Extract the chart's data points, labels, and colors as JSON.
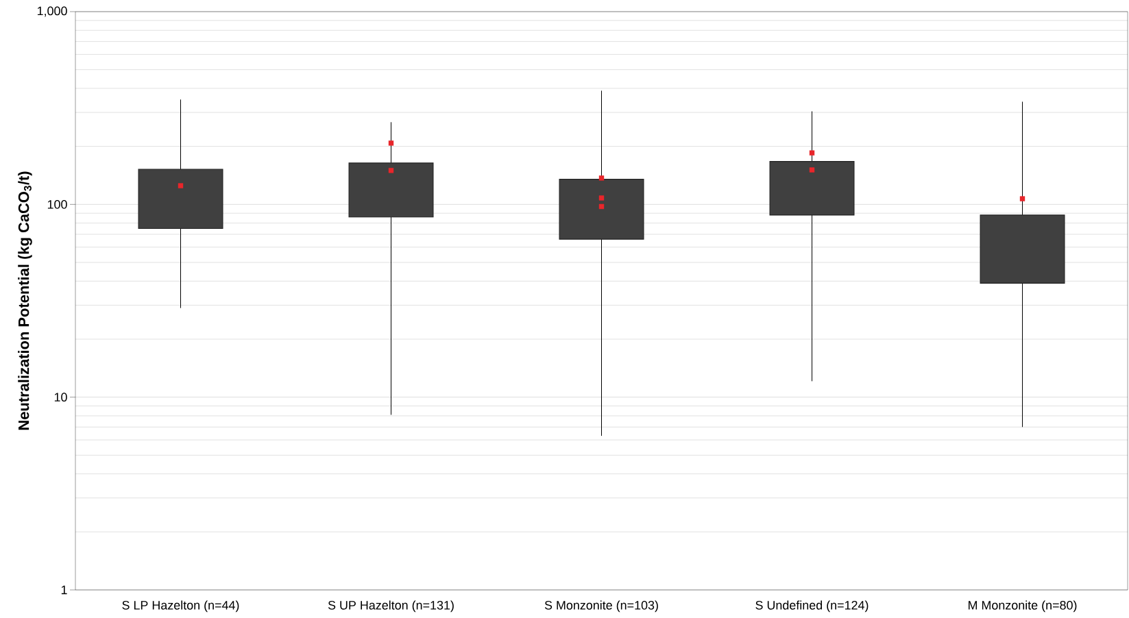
{
  "chart_data": {
    "type": "box",
    "ylabel": "Neutralization Potential (kg CaCO$_{3}$/t)",
    "categories": [
      "S LP Hazelton (n=44)",
      "S UP Hazelton (n=131)",
      "S Monzonite (n=103)",
      "S Undefined (n=124)",
      "M Monzonite (n=80)"
    ],
    "color": "#404040",
    "boxes": [
      {
        "low": 29,
        "q1": 75,
        "q3": 152,
        "high": 350
      },
      {
        "low": 8.1,
        "q1": 86,
        "q3": 164,
        "high": 267
      },
      {
        "low": 6.3,
        "q1": 66,
        "q3": 135,
        "high": 389
      },
      {
        "low": 12.1,
        "q1": 88,
        "q3": 167,
        "high": 304
      },
      {
        "low": 7.0,
        "q1": 39,
        "q3": 88,
        "high": 341
      }
    ],
    "series": [
      {
        "type": "scatter",
        "color": "#e8262b",
        "marker": "square",
        "x": [
          "S LP Hazelton (n=44)",
          "S UP Hazelton (n=131)",
          "S UP Hazelton (n=131)",
          "S Monzonite (n=103)",
          "S Monzonite (n=103)",
          "S Monzonite (n=103)",
          "S Undefined (n=124)",
          "S Undefined (n=124)",
          "M Monzonite (n=80)"
        ],
        "values": [
          125,
          208,
          150,
          137,
          108,
          97.5,
          185,
          151,
          107
        ]
      }
    ],
    "log": true,
    "ylim": [
      1,
      1000
    ],
    "yticks": [
      1,
      10,
      100,
      {
        "value": 1000,
        "label": "1,000"
      }
    ],
    "grid": "y"
  }
}
